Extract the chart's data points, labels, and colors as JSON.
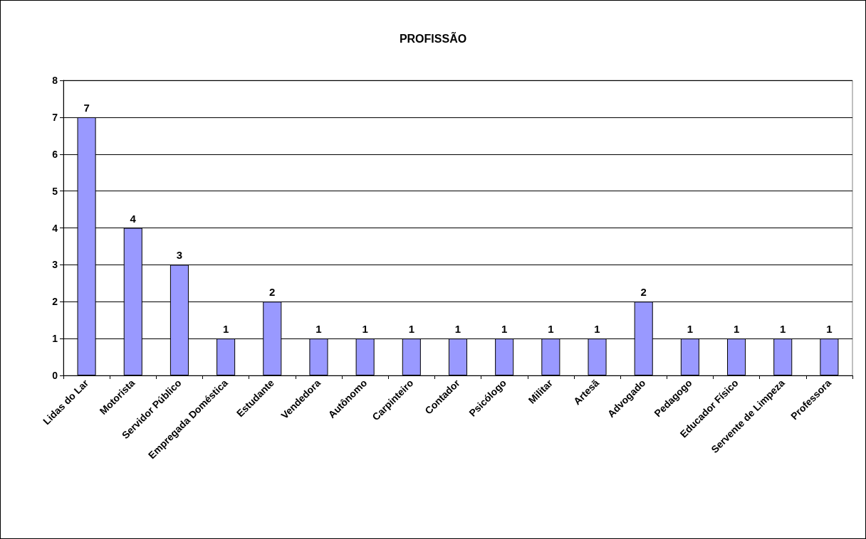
{
  "chart_data": {
    "type": "bar",
    "title": "PROFISSÃO",
    "categories": [
      "Lidas do Lar",
      "Motorista",
      "Servidor Público",
      "Empregada Doméstica",
      "Estudante",
      "Vendedora",
      "Autônomo",
      "Carpinteiro",
      "Contador",
      "Psicólogo",
      "Militar",
      "Artesã",
      "Advogado",
      "Pedagogo",
      "Educador Físico",
      "Servente de Limpeza",
      "Professora"
    ],
    "values": [
      7,
      4,
      3,
      1,
      2,
      1,
      1,
      1,
      1,
      1,
      1,
      1,
      2,
      1,
      1,
      1,
      1
    ],
    "color": "#9999ff",
    "ylim": [
      0,
      8
    ],
    "yticks": [
      0,
      1,
      2,
      3,
      4,
      5,
      6,
      7,
      8
    ],
    "grid": "y",
    "data_labels": true
  }
}
